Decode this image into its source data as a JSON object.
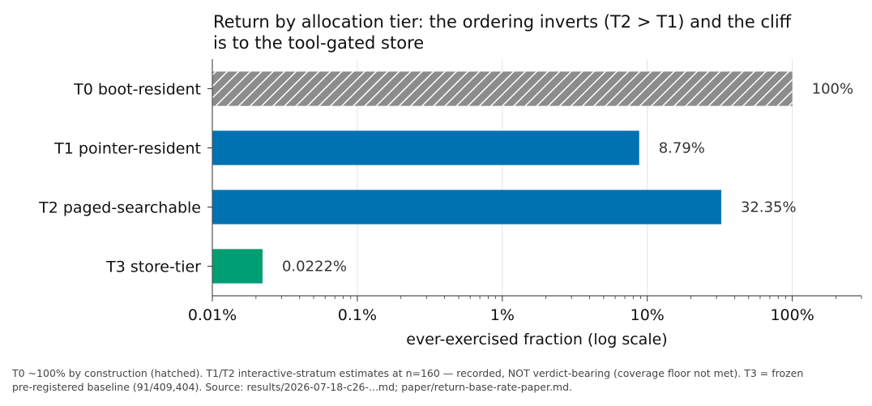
{
  "chart_data": {
    "type": "bar",
    "orientation": "horizontal",
    "title": "Return by allocation tier: the ordering inverts (T2 > T1) and the cliff is to the tool-gated store",
    "title_lines": [
      "Return by allocation tier: the ordering inverts (T2 > T1) and the cliff",
      "is to the tool-gated store"
    ],
    "categories": [
      "T0 boot-resident",
      "T1 pointer-resident",
      "T2 paged-searchable",
      "T3 store-tier"
    ],
    "values": [
      100,
      8.79,
      32.35,
      0.0222
    ],
    "value_labels": [
      "100%",
      "8.79%",
      "32.35%",
      "0.0222%"
    ],
    "bar_colors": [
      "#8c8c8c",
      "#0072b2",
      "#0072b2",
      "#009e73"
    ],
    "hatched": [
      true,
      false,
      false,
      false
    ],
    "xlabel": "ever-exercised fraction (log scale)",
    "x_scale": "log",
    "xlim": [
      0.01,
      300
    ],
    "x_ticks": [
      0.01,
      0.1,
      1,
      10,
      100
    ],
    "x_tick_labels": [
      "0.01%",
      "0.1%",
      "1%",
      "10%",
      "100%"
    ],
    "grid": "vertical"
  },
  "footnote": {
    "lines": [
      "T0 ~100% by construction (hatched). T1/T2 interactive-stratum estimates at n=160 — recorded, NOT verdict-bearing (coverage floor not met). T3 = frozen",
      "pre-registered baseline (91/409,404). Source: results/2026-07-18-c26-...md; paper/return-base-rate-paper.md."
    ]
  }
}
